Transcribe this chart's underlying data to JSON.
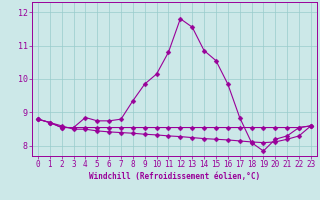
{
  "x": [
    0,
    1,
    2,
    3,
    4,
    5,
    6,
    7,
    8,
    9,
    10,
    11,
    12,
    13,
    14,
    15,
    16,
    17,
    18,
    19,
    20,
    21,
    22,
    23
  ],
  "line1": [
    8.8,
    8.7,
    8.55,
    8.55,
    8.85,
    8.75,
    8.75,
    8.8,
    9.35,
    9.85,
    10.15,
    10.8,
    11.8,
    11.55,
    10.85,
    10.55,
    9.85,
    8.85,
    8.1,
    7.85,
    8.2,
    8.3,
    8.55,
    8.6
  ],
  "line2": [
    8.8,
    8.7,
    8.55,
    8.55,
    8.55,
    8.55,
    8.55,
    8.55,
    8.55,
    8.55,
    8.55,
    8.55,
    8.55,
    8.55,
    8.55,
    8.55,
    8.55,
    8.55,
    8.55,
    8.55,
    8.55,
    8.55,
    8.55,
    8.6
  ],
  "line3": [
    8.8,
    8.7,
    8.6,
    8.5,
    8.5,
    8.45,
    8.42,
    8.4,
    8.38,
    8.35,
    8.33,
    8.3,
    8.28,
    8.25,
    8.22,
    8.2,
    8.18,
    8.15,
    8.12,
    8.1,
    8.12,
    8.2,
    8.3,
    8.6
  ],
  "line_color": "#990099",
  "bg_color": "#cce8e8",
  "grid_color": "#99cccc",
  "axis_color": "#990099",
  "ylim": [
    7.7,
    12.3
  ],
  "xlim": [
    -0.5,
    23.5
  ],
  "yticks": [
    8,
    9,
    10,
    11,
    12
  ],
  "xticks": [
    0,
    1,
    2,
    3,
    4,
    5,
    6,
    7,
    8,
    9,
    10,
    11,
    12,
    13,
    14,
    15,
    16,
    17,
    18,
    19,
    20,
    21,
    22,
    23
  ],
  "xlabel": "Windchill (Refroidissement éolien,°C)",
  "marker": "D",
  "markersize": 2.5,
  "linewidth": 0.8
}
